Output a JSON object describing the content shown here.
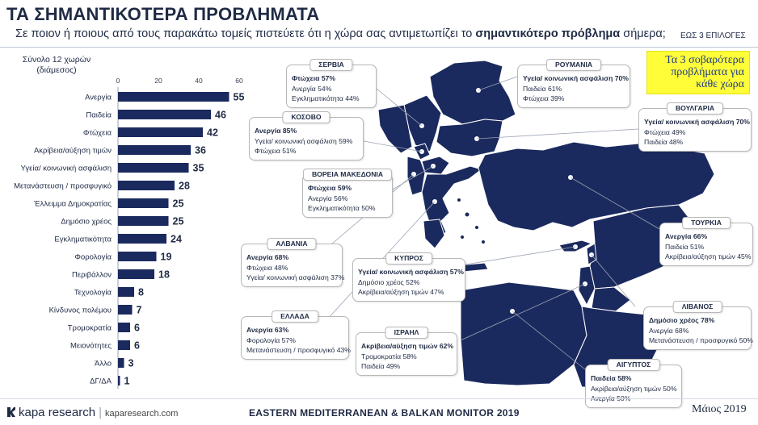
{
  "header": {
    "title": "ΤΑ ΣΗΜΑΝΤΙΚΟΤΕΡΑ ΠΡΟΒΛΗΜΑΤΑ",
    "question_pre": "Σε ποιον ή ποιους από τους παρακάτω τομείς πιστεύετε ότι η χώρα σας αντιμετωπίζει το ",
    "question_bold": "σημαντικότερο πρόβλημα",
    "question_post": " σήμερα;",
    "choices_note": "ΕΩΣ 3 ΕΠΙΛΟΓΕΣ"
  },
  "sample_note": "Σύνολο 12 χωρών (διάμεσος)",
  "legend_note": "Τα 3 σοβαρότερα προβλήματα για κάθε χώρα",
  "colors": {
    "bar": "#1b2a5e",
    "map": "#1b2a5e",
    "text": "#1f2a44",
    "highlight": "#fffd38"
  },
  "chart_data": {
    "type": "bar",
    "orientation": "horizontal",
    "categories": [
      "Ανεργία",
      "Παιδεία",
      "Φτώχεια",
      "Ακρίβεια/αύξηση τιμών",
      "Υγεία/ κοινωνική ασφάλιση",
      "Μετανάστευση / προσφυγικό",
      "Έλλειμμα Δημοκρατίας",
      "Δημόσιο χρέος",
      "Εγκληματικότητα",
      "Φορολογία",
      "Περιβάλλον",
      "Τεχνολογία",
      "Κίνδυνος πολέμου",
      "Τρομοκρατία",
      "Μειονότητες",
      "Άλλο",
      "ΔΓ/ΔΑ"
    ],
    "values": [
      55,
      46,
      42,
      36,
      35,
      28,
      25,
      25,
      24,
      19,
      18,
      8,
      7,
      6,
      6,
      3,
      1
    ],
    "xlim": [
      0,
      60
    ],
    "xticks": [
      "0",
      "20",
      "40",
      "60"
    ],
    "grid": false
  },
  "countries": [
    {
      "name": "ΣΕΡΒΙΑ",
      "items": [
        "Φτώχεια 57%",
        "Ανεργία 54%",
        "Εγκληματικότητα 44%"
      ]
    },
    {
      "name": "ΡΟΥΜΑΝΙΑ",
      "items": [
        "Υγεία/ κοινωνική ασφάλιση 70%",
        "Παιδεία 61%",
        "Φτώχεια 39%"
      ]
    },
    {
      "name": "ΚΟΣΟΒΟ",
      "items": [
        "Ανεργία 85%",
        "Υγεία/ κοινωνική ασφάλιση 59%",
        "Φτώχεια 51%"
      ]
    },
    {
      "name": "ΒΟΥΛΓΑΡΙΑ",
      "items": [
        "Υγεία/ κοινωνική ασφάλιση 70%",
        "Φτώχεια 49%",
        "Παιδεία 48%"
      ]
    },
    {
      "name": "ΒΟΡΕΙΑ ΜΑΚΕΔΟΝΙΑ",
      "items": [
        "Φτώχεια 59%",
        "Ανεργία 56%",
        "Εγκληματικότητα 50%"
      ]
    },
    {
      "name": "ΤΟΥΡΚΙΑ",
      "items": [
        "Ανεργία 66%",
        "Παιδεία 51%",
        "Ακρίβεια/αύξηση τιμών 45%"
      ]
    },
    {
      "name": "ΑΛΒΑΝΙΑ",
      "items": [
        "Ανεργία 68%",
        "Φτώχεια 48%",
        "Υγεία/ κοινωνική ασφάλιση 37%"
      ]
    },
    {
      "name": "ΚΥΠΡΟΣ",
      "items": [
        "Υγεία/ κοινωνική ασφάλιση 57%",
        "Δημόσιο χρέος 52%",
        "Ακρίβεια/αύξηση τιμών 47%"
      ]
    },
    {
      "name": "ΛΙΒΑΝΟΣ",
      "items": [
        "Δημόσιο χρέος 78%",
        "Ανεργία 68%",
        "Μετανάστευση / προσφυγικό 50%"
      ]
    },
    {
      "name": "ΕΛΛΑΔΑ",
      "items": [
        "Ανεργία 63%",
        "Φορολογία 57%",
        "Μετανάστευση / προσφυγικό 43%"
      ]
    },
    {
      "name": "ΙΣΡΑΗΛ",
      "items": [
        "Ακρίβεια/αύξηση τιμών 62%",
        "Τρομοκρατία 58%",
        "Παιδεία 49%"
      ]
    },
    {
      "name": "ΑΙΓΥΠΤΟΣ",
      "items": [
        "Παιδεία 58%",
        "Ακρίβεια/αύξηση τιμών 50%",
        "Ανεργία 50%"
      ]
    }
  ],
  "footer": {
    "logo_text": "kapa research",
    "website": "kaparesearch.com",
    "monitor": "EASTERN MEDITERRANEAN & BALKAN MONITOR 2019",
    "date": "Μάιος 2019"
  }
}
